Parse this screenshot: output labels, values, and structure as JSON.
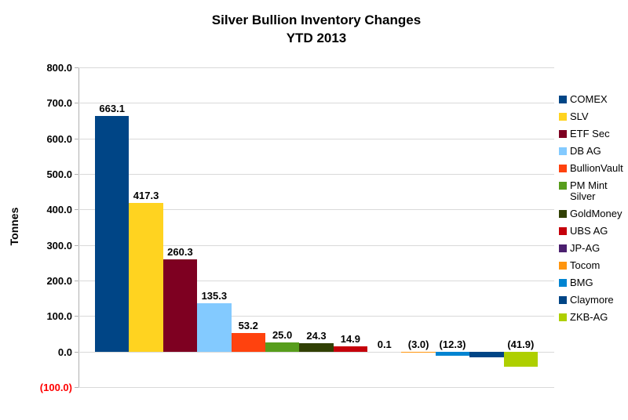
{
  "chart_data": {
    "type": "bar",
    "title": "Silver Bullion Inventory Changes",
    "subtitle": "YTD 2013",
    "ylabel": "Tonnes",
    "ylim": [
      -100,
      800
    ],
    "ytick_step": 100,
    "ytick_labels": [
      "800.0",
      "700.0",
      "600.0",
      "500.0",
      "400.0",
      "300.0",
      "200.0",
      "100.0",
      "0.0",
      "(100.0)"
    ],
    "grid": true,
    "legend_position": "right",
    "negative_axis_label_color": "#ff0000",
    "series": [
      {
        "name": "COMEX",
        "value": 663.1,
        "label": "663.1",
        "color": "#004586"
      },
      {
        "name": "SLV",
        "value": 417.3,
        "label": "417.3",
        "color": "#FFD320"
      },
      {
        "name": "ETF Sec",
        "value": 260.3,
        "label": "260.3",
        "color": "#7E0021"
      },
      {
        "name": "DB AG",
        "value": 135.3,
        "label": "135.3",
        "color": "#83CAFF"
      },
      {
        "name": "BullionVault",
        "value": 53.2,
        "label": "53.2",
        "color": "#FF420E"
      },
      {
        "name": "PM Mint Silver",
        "value": 25.0,
        "label": "25.0",
        "color": "#579D1C"
      },
      {
        "name": "GoldMoney",
        "value": 24.3,
        "label": "24.3",
        "color": "#314004"
      },
      {
        "name": "UBS AG",
        "value": 14.9,
        "label": "14.9",
        "color": "#C5000B"
      },
      {
        "name": "JP-AG",
        "value": 0.1,
        "label": "0.1",
        "color": "#4B1F6F"
      },
      {
        "name": "Tocom",
        "value": -3.0,
        "label": "(3.0)",
        "color": "#FF950E"
      },
      {
        "name": "BMG",
        "value": -12.3,
        "label": "(12.3)",
        "color": "#0084D1"
      },
      {
        "name": "Claymore",
        "value": -16.0,
        "label": "",
        "color": "#004586"
      },
      {
        "name": "ZKB-AG",
        "value": -41.9,
        "label": "(41.9)",
        "color": "#AECF00"
      }
    ]
  }
}
